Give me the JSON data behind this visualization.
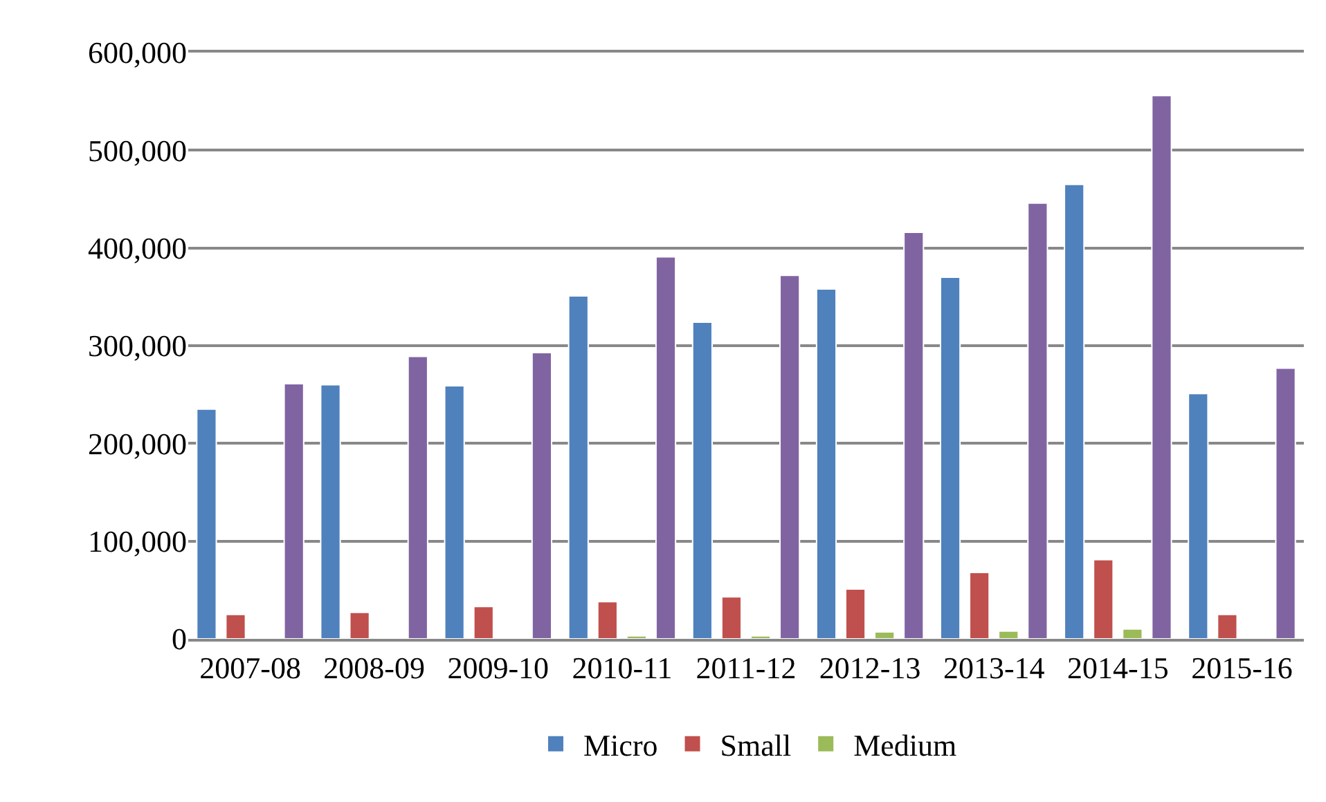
{
  "chart_data": {
    "type": "bar",
    "categories": [
      "2007-08",
      "2008-09",
      "2009-10",
      "2010-11",
      "2011-12",
      "2012-13",
      "2013-14",
      "2014-15",
      "2015-16"
    ],
    "series": [
      {
        "name": "Micro",
        "color": "#4f81bd",
        "values": [
          235000,
          260000,
          259000,
          351000,
          324000,
          358000,
          370000,
          465000,
          251000
        ]
      },
      {
        "name": "Small",
        "color": "#c0504d",
        "values": [
          25000,
          27000,
          33000,
          38000,
          43000,
          51000,
          68000,
          81000,
          25000
        ]
      },
      {
        "name": "Medium",
        "color": "#9bbb59",
        "values": [
          null,
          null,
          1000,
          3000,
          3000,
          7000,
          8000,
          10000,
          null
        ]
      },
      {
        "color": "#8064a2",
        "values": [
          261000,
          289000,
          293000,
          391000,
          372000,
          416000,
          446000,
          556000,
          277000
        ]
      }
    ],
    "ylim": [
      0,
      600000
    ],
    "yticks": [
      {
        "value": 0,
        "label": "0"
      },
      {
        "value": 100000,
        "label": "100,000"
      },
      {
        "value": 200000,
        "label": "200,000"
      },
      {
        "value": 300000,
        "label": "300,000"
      },
      {
        "value": 400000,
        "label": "400,000"
      },
      {
        "value": 500000,
        "label": "500,000"
      },
      {
        "value": 600000,
        "label": "600,000"
      }
    ],
    "grid": "y",
    "legend": "bottom"
  }
}
